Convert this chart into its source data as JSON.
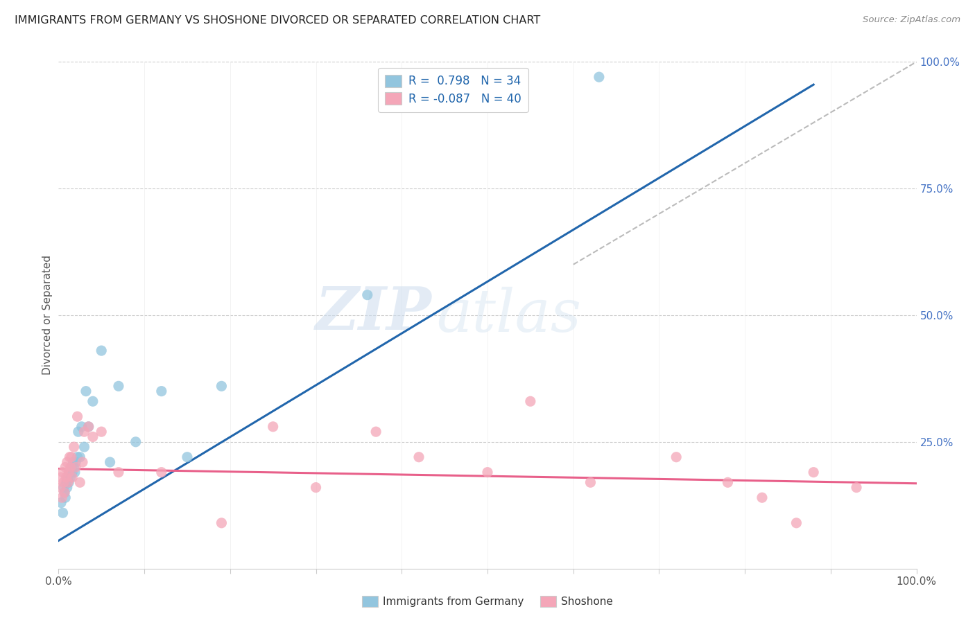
{
  "title": "IMMIGRANTS FROM GERMANY VS SHOSHONE DIVORCED OR SEPARATED CORRELATION CHART",
  "source": "Source: ZipAtlas.com",
  "ylabel": "Divorced or Separated",
  "xlim": [
    0.0,
    1.0
  ],
  "ylim": [
    0.0,
    1.0
  ],
  "ytick_positions": [
    0.0,
    0.25,
    0.5,
    0.75,
    1.0
  ],
  "ytick_labels_right": [
    "",
    "25.0%",
    "50.0%",
    "75.0%",
    "100.0%"
  ],
  "blue_color": "#92c5de",
  "pink_color": "#f4a6b8",
  "blue_line_color": "#2166ac",
  "pink_line_color": "#e8608a",
  "dashed_line_color": "#bbbbbb",
  "watermark_zip": "ZIP",
  "watermark_atlas": "atlas",
  "legend_label1": "Immigrants from Germany",
  "legend_label2": "Shoshone",
  "legend_r1": "R =  0.798   N = 34",
  "legend_r2": "R = -0.087   N = 40",
  "blue_line_x0": 0.0,
  "blue_line_y0": 0.055,
  "blue_line_x1": 0.88,
  "blue_line_y1": 0.955,
  "pink_line_x0": 0.0,
  "pink_line_y0": 0.197,
  "pink_line_x1": 1.0,
  "pink_line_y1": 0.168,
  "germany_x": [
    0.003,
    0.005,
    0.006,
    0.007,
    0.008,
    0.009,
    0.01,
    0.011,
    0.012,
    0.013,
    0.014,
    0.015,
    0.016,
    0.017,
    0.018,
    0.019,
    0.02,
    0.022,
    0.023,
    0.025,
    0.027,
    0.03,
    0.032,
    0.035,
    0.04,
    0.05,
    0.06,
    0.07,
    0.09,
    0.12,
    0.15,
    0.19,
    0.36,
    0.63
  ],
  "germany_y": [
    0.13,
    0.11,
    0.16,
    0.15,
    0.14,
    0.17,
    0.16,
    0.18,
    0.17,
    0.19,
    0.18,
    0.2,
    0.19,
    0.21,
    0.2,
    0.19,
    0.21,
    0.22,
    0.27,
    0.22,
    0.28,
    0.24,
    0.35,
    0.28,
    0.33,
    0.43,
    0.21,
    0.36,
    0.25,
    0.35,
    0.22,
    0.36,
    0.54,
    0.97
  ],
  "shoshone_x": [
    0.002,
    0.003,
    0.004,
    0.005,
    0.006,
    0.007,
    0.008,
    0.009,
    0.01,
    0.011,
    0.012,
    0.013,
    0.014,
    0.015,
    0.016,
    0.018,
    0.02,
    0.022,
    0.025,
    0.028,
    0.03,
    0.035,
    0.04,
    0.05,
    0.07,
    0.12,
    0.19,
    0.25,
    0.3,
    0.37,
    0.42,
    0.5,
    0.55,
    0.62,
    0.72,
    0.78,
    0.82,
    0.86,
    0.88,
    0.93
  ],
  "shoshone_y": [
    0.16,
    0.18,
    0.14,
    0.19,
    0.17,
    0.15,
    0.2,
    0.18,
    0.21,
    0.17,
    0.19,
    0.22,
    0.2,
    0.22,
    0.18,
    0.24,
    0.2,
    0.3,
    0.17,
    0.21,
    0.27,
    0.28,
    0.26,
    0.27,
    0.19,
    0.19,
    0.09,
    0.28,
    0.16,
    0.27,
    0.22,
    0.19,
    0.33,
    0.17,
    0.22,
    0.17,
    0.14,
    0.09,
    0.19,
    0.16
  ]
}
